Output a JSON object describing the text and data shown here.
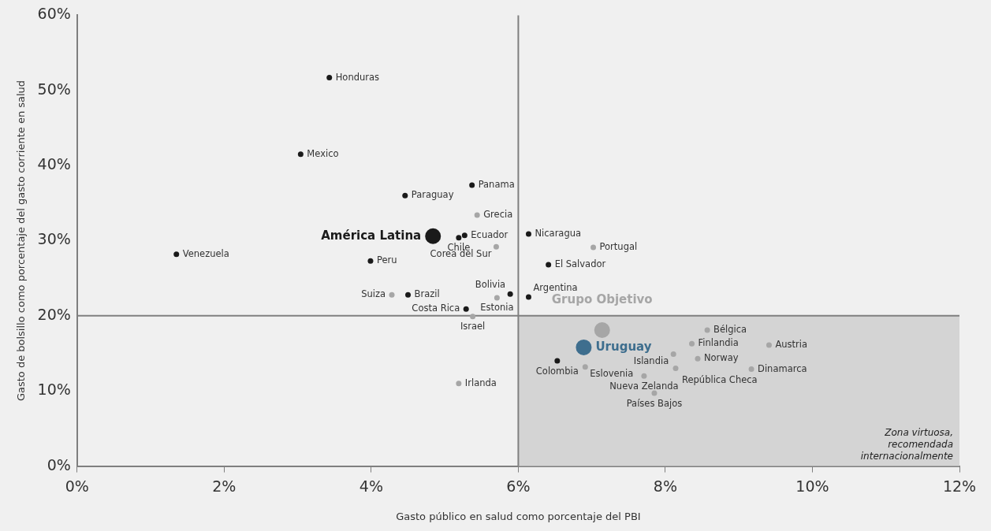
{
  "chart_data": {
    "type": "scatter",
    "xlabel": "Gasto público en salud como porcentaje del PBI",
    "ylabel": "Gasto de bolsillo como porcentaje del gasto corriente en salud",
    "xlim": [
      0,
      12
    ],
    "ylim": [
      0,
      60
    ],
    "xticks": [
      {
        "value": 0,
        "label": "0%"
      },
      {
        "value": 2,
        "label": "2%"
      },
      {
        "value": 4,
        "label": "4%"
      },
      {
        "value": 6,
        "label": "6%"
      },
      {
        "value": 8,
        "label": "8%"
      },
      {
        "value": 10,
        "label": "10%"
      },
      {
        "value": 12,
        "label": "12%"
      }
    ],
    "yticks": [
      {
        "value": 0,
        "label": "0%"
      },
      {
        "value": 10,
        "label": "10%"
      },
      {
        "value": 20,
        "label": "20%"
      },
      {
        "value": 30,
        "label": "30%"
      },
      {
        "value": 40,
        "label": "40%"
      },
      {
        "value": 50,
        "label": "50%"
      },
      {
        "value": 60,
        "label": "60%"
      }
    ],
    "grid": false,
    "legend": false,
    "marker": "circle",
    "series": [
      {
        "color": "#1a1a1a",
        "x": [
          3.43,
          3.04,
          5.37,
          4.46,
          5.19,
          5.27,
          6.14,
          1.35,
          3.99,
          6.41,
          4.5,
          5.89,
          6.14,
          5.29,
          6.53
        ],
        "values": [
          51.7,
          41.5,
          37.4,
          36.0,
          30.4,
          30.7,
          30.9,
          28.2,
          27.3,
          26.8,
          22.8,
          22.9,
          22.5,
          20.9,
          14.0
        ]
      },
      {
        "color": "#a6a6a6",
        "x": [
          5.44,
          5.7,
          7.02,
          4.28,
          5.71,
          5.38,
          8.57,
          8.36,
          8.11,
          9.41,
          8.44,
          9.17,
          8.14,
          6.91,
          7.71,
          7.85,
          5.19
        ],
        "values": [
          33.4,
          29.2,
          29.1,
          22.8,
          22.4,
          19.9,
          18.1,
          16.3,
          14.9,
          16.1,
          14.3,
          12.9,
          13.0,
          13.2,
          12.0,
          9.7,
          11.0
        ]
      },
      {
        "name": "América Latina",
        "color": "#1a1a1a",
        "x": [
          4.84
        ],
        "values": [
          30.6
        ]
      },
      {
        "name": "Grupo Objetivo",
        "color": "#a6a6a6",
        "x": [
          7.14
        ],
        "values": [
          18.1
        ]
      },
      {
        "name": "Uruguay",
        "color": "#3e6e8e",
        "x": [
          6.89
        ],
        "values": [
          15.8
        ]
      }
    ],
    "ref_lines": [
      {
        "axis": "x",
        "value": 6,
        "color": "#7f7f7f"
      },
      {
        "axis": "y",
        "value": 20,
        "color": "#7f7f7f"
      }
    ],
    "bands": [
      {
        "axis": "x",
        "from": 6,
        "to": 12,
        "color": "#d4d4d4",
        "label": "Zona virtuosa,\nrecomendada\ninternacionalmente"
      }
    ],
    "annotations": [
      {
        "text": "Honduras",
        "x": 3.43,
        "y": 51.7
      },
      {
        "text": "Mexico",
        "x": 3.04,
        "y": 41.5
      },
      {
        "text": "Panama",
        "x": 5.37,
        "y": 37.4
      },
      {
        "text": "Paraguay",
        "x": 4.46,
        "y": 36.0
      },
      {
        "text": "Chile",
        "x": 5.19,
        "y": 30.4
      },
      {
        "text": "Ecuador",
        "x": 5.27,
        "y": 30.7
      },
      {
        "text": "Nicaragua",
        "x": 6.14,
        "y": 30.9
      },
      {
        "text": "Venezuela",
        "x": 1.35,
        "y": 28.2
      },
      {
        "text": "Peru",
        "x": 3.99,
        "y": 27.3
      },
      {
        "text": "El Salvador",
        "x": 6.41,
        "y": 26.8
      },
      {
        "text": "Brazil",
        "x": 4.5,
        "y": 22.8
      },
      {
        "text": "Bolivia",
        "x": 5.89,
        "y": 22.9
      },
      {
        "text": "Argentina",
        "x": 6.14,
        "y": 22.5
      },
      {
        "text": "Costa Rica",
        "x": 5.29,
        "y": 20.9
      },
      {
        "text": "Colombia",
        "x": 6.53,
        "y": 14.0
      },
      {
        "text": "Grecia",
        "x": 5.44,
        "y": 33.4
      },
      {
        "text": "Corea del Sur",
        "x": 5.7,
        "y": 29.2
      },
      {
        "text": "Portugal",
        "x": 7.02,
        "y": 29.1
      },
      {
        "text": "Suiza",
        "x": 4.28,
        "y": 22.8
      },
      {
        "text": "Estonia",
        "x": 5.71,
        "y": 22.4
      },
      {
        "text": "Israel",
        "x": 5.38,
        "y": 19.9
      },
      {
        "text": "Bélgica",
        "x": 8.57,
        "y": 18.1
      },
      {
        "text": "Finlandia",
        "x": 8.36,
        "y": 16.3
      },
      {
        "text": "Islandia",
        "x": 8.11,
        "y": 14.9
      },
      {
        "text": "Austria",
        "x": 9.41,
        "y": 16.1
      },
      {
        "text": "Norway",
        "x": 8.44,
        "y": 14.3
      },
      {
        "text": "Dinamarca",
        "x": 9.17,
        "y": 12.9
      },
      {
        "text": "República Checa",
        "x": 8.14,
        "y": 13.0
      },
      {
        "text": "Eslovenia",
        "x": 6.91,
        "y": 13.2
      },
      {
        "text": "Nueva Zelanda",
        "x": 7.71,
        "y": 12.0
      },
      {
        "text": "Países Bajos",
        "x": 7.85,
        "y": 9.7
      },
      {
        "text": "Irlanda",
        "x": 5.19,
        "y": 11.0
      }
    ]
  }
}
